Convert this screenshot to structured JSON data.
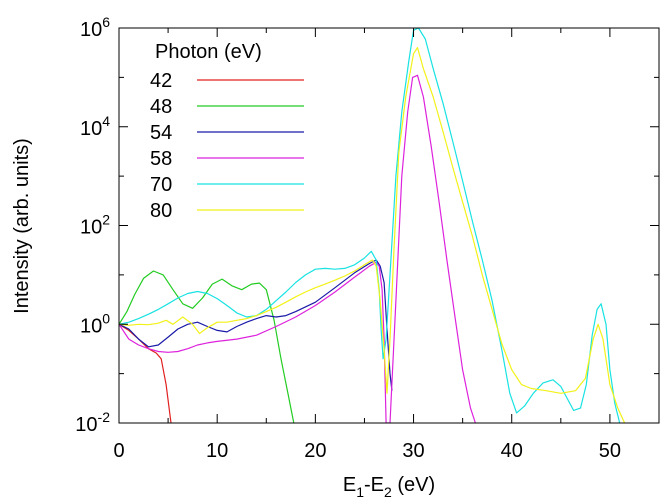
{
  "chart_data": {
    "type": "line",
    "xlabel": "E1-E2 (eV)",
    "xlabel_parts": {
      "base1": "E",
      "sub1": "1",
      "mid": "-E",
      "sub2": "2",
      "tail": " (eV)"
    },
    "ylabel": "Intensity (arb. units)",
    "xlim": [
      0,
      55
    ],
    "ylim": [
      0.01,
      1000000
    ],
    "yscale": "log",
    "x_ticks": [
      0,
      10,
      20,
      30,
      40,
      50
    ],
    "x_tick_labels": [
      "0",
      "10",
      "20",
      "30",
      "40",
      "50"
    ],
    "y_ticks": [
      {
        "value": 0.01,
        "base": "10",
        "exp": "-2"
      },
      {
        "value": 1,
        "base": "10",
        "exp": "0"
      },
      {
        "value": 100,
        "base": "10",
        "exp": "2"
      },
      {
        "value": 10000,
        "base": "10",
        "exp": "4"
      },
      {
        "value": 1000000,
        "base": "10",
        "exp": "6"
      }
    ],
    "grid": false,
    "legend": {
      "title": "Photon (eV)",
      "placement": "top-left"
    },
    "series": [
      {
        "name": "42",
        "color": "#e0201f",
        "points": [
          [
            0,
            1.0
          ],
          [
            1,
            0.75
          ],
          [
            2,
            0.5
          ],
          [
            3,
            0.32
          ],
          [
            3.8,
            0.26
          ],
          [
            4.3,
            0.2
          ],
          [
            4.8,
            0.06
          ],
          [
            5.3,
            0.01
          ]
        ]
      },
      {
        "name": "48",
        "color": "#22cc22",
        "points": [
          [
            0,
            1.0
          ],
          [
            0.8,
            1.8
          ],
          [
            1.6,
            4.0
          ],
          [
            2.5,
            8.5
          ],
          [
            3.5,
            12.0
          ],
          [
            4.5,
            10.0
          ],
          [
            5.5,
            5.0
          ],
          [
            6.5,
            2.6
          ],
          [
            7.5,
            2.1
          ],
          [
            8.5,
            3.4
          ],
          [
            9.5,
            6.5
          ],
          [
            10.5,
            8.2
          ],
          [
            11.5,
            6.0
          ],
          [
            12.5,
            5.0
          ],
          [
            13.5,
            6.5
          ],
          [
            14.3,
            6.8
          ],
          [
            15,
            5.0
          ],
          [
            15.8,
            1.2
          ],
          [
            16.5,
            0.2
          ],
          [
            17.2,
            0.04
          ],
          [
            17.8,
            0.01
          ]
        ]
      },
      {
        "name": "54",
        "color": "#1a1aa8",
        "points": [
          [
            0,
            1.0
          ],
          [
            1,
            0.8
          ],
          [
            2,
            0.5
          ],
          [
            3,
            0.35
          ],
          [
            4,
            0.38
          ],
          [
            5,
            0.55
          ],
          [
            6,
            0.8
          ],
          [
            7,
            1.0
          ],
          [
            8,
            1.1
          ],
          [
            9,
            0.9
          ],
          [
            10,
            0.75
          ],
          [
            11,
            0.7
          ],
          [
            12,
            0.9
          ],
          [
            13,
            1.1
          ],
          [
            14,
            1.3
          ],
          [
            15,
            1.5
          ],
          [
            16,
            1.4
          ],
          [
            17,
            1.5
          ],
          [
            18,
            1.8
          ],
          [
            20,
            2.8
          ],
          [
            22,
            5.5
          ],
          [
            24,
            11.0
          ],
          [
            25.5,
            17.0
          ],
          [
            26.2,
            20.0
          ],
          [
            26.6,
            15.0
          ],
          [
            27.0,
            7.0
          ],
          [
            27.3,
            0.8
          ],
          [
            27.6,
            0.1
          ],
          [
            27.8,
            0.045
          ]
        ]
      },
      {
        "name": "58",
        "color": "#dd22dd",
        "points": [
          [
            0,
            1.0
          ],
          [
            1,
            0.5
          ],
          [
            2,
            0.38
          ],
          [
            3,
            0.32
          ],
          [
            4,
            0.28
          ],
          [
            5,
            0.27
          ],
          [
            6,
            0.28
          ],
          [
            7,
            0.32
          ],
          [
            8,
            0.38
          ],
          [
            9,
            0.42
          ],
          [
            10,
            0.45
          ],
          [
            12,
            0.5
          ],
          [
            14,
            0.6
          ],
          [
            16,
            0.9
          ],
          [
            18,
            1.4
          ],
          [
            20,
            2.4
          ],
          [
            22,
            4.5
          ],
          [
            24,
            9.0
          ],
          [
            25.5,
            15.0
          ],
          [
            26.2,
            18.0
          ],
          [
            26.5,
            15.0
          ],
          [
            26.8,
            5.0
          ],
          [
            27.0,
            0.5
          ],
          [
            27.2,
            0.01
          ],
          [
            27.6,
            0.01
          ],
          [
            28.2,
            3.0
          ],
          [
            28.8,
            1000
          ],
          [
            29.4,
            20000
          ],
          [
            29.9,
            100000
          ],
          [
            30.4,
            110000
          ],
          [
            31.0,
            40000
          ],
          [
            31.8,
            4000
          ],
          [
            32.6,
            300
          ],
          [
            33.4,
            20
          ],
          [
            34.2,
            1.5
          ],
          [
            35,
            0.12
          ],
          [
            35.8,
            0.02
          ],
          [
            36.3,
            0.01
          ]
        ]
      },
      {
        "name": "70",
        "color": "#18e2e2",
        "points": [
          [
            0,
            1.0
          ],
          [
            1,
            1.1
          ],
          [
            2,
            1.3
          ],
          [
            3,
            1.6
          ],
          [
            4,
            2.0
          ],
          [
            5,
            2.6
          ],
          [
            6,
            3.4
          ],
          [
            7,
            4.2
          ],
          [
            8,
            4.6
          ],
          [
            9,
            4.2
          ],
          [
            10,
            3.3
          ],
          [
            11,
            2.4
          ],
          [
            12,
            1.7
          ],
          [
            13,
            1.4
          ],
          [
            14,
            1.5
          ],
          [
            15,
            2.0
          ],
          [
            16,
            3.0
          ],
          [
            17,
            4.5
          ],
          [
            18,
            7.0
          ],
          [
            19,
            10.0
          ],
          [
            20,
            13.0
          ],
          [
            21,
            13.5
          ],
          [
            22,
            13.0
          ],
          [
            23,
            13.5
          ],
          [
            24,
            16.0
          ],
          [
            25,
            22.0
          ],
          [
            25.7,
            30.0
          ],
          [
            26.2,
            20.0
          ],
          [
            26.5,
            5.0
          ],
          [
            26.7,
            0.8
          ],
          [
            26.9,
            0.2
          ],
          [
            27.2,
            0.5
          ],
          [
            27.6,
            10.0
          ],
          [
            28.2,
            1000
          ],
          [
            28.8,
            20000
          ],
          [
            29.5,
            200000
          ],
          [
            30.0,
            900000
          ],
          [
            30.5,
            1000000
          ],
          [
            31.2,
            600000
          ],
          [
            32,
            150000
          ],
          [
            33,
            30000
          ],
          [
            34,
            5000
          ],
          [
            35,
            800
          ],
          [
            36,
            120
          ],
          [
            37,
            20
          ],
          [
            38,
            3.0
          ],
          [
            39,
            0.3
          ],
          [
            39.8,
            0.04
          ],
          [
            40.5,
            0.016
          ],
          [
            41.3,
            0.022
          ],
          [
            42.2,
            0.04
          ],
          [
            43.2,
            0.065
          ],
          [
            44.2,
            0.075
          ],
          [
            45.0,
            0.055
          ],
          [
            45.7,
            0.03
          ],
          [
            46.3,
            0.018
          ],
          [
            47,
            0.02
          ],
          [
            47.6,
            0.06
          ],
          [
            48.2,
            0.6
          ],
          [
            48.7,
            2.0
          ],
          [
            49.1,
            2.6
          ],
          [
            49.6,
            1.0
          ],
          [
            50,
            0.12
          ],
          [
            50.5,
            0.025
          ],
          [
            51,
            0.01
          ]
        ]
      },
      {
        "name": "80",
        "color": "#f2f219",
        "points": [
          [
            0,
            1.0
          ],
          [
            1,
            0.95
          ],
          [
            2,
            1.0
          ],
          [
            3,
            0.98
          ],
          [
            4,
            1.05
          ],
          [
            4.8,
            1.2
          ],
          [
            5.5,
            1.0
          ],
          [
            6.5,
            1.4
          ],
          [
            7.5,
            1.0
          ],
          [
            8.2,
            0.65
          ],
          [
            9,
            0.85
          ],
          [
            10,
            1.1
          ],
          [
            11,
            1.1
          ],
          [
            12,
            1.2
          ],
          [
            13,
            1.3
          ],
          [
            14,
            1.5
          ],
          [
            15,
            1.8
          ],
          [
            16,
            2.2
          ],
          [
            17,
            2.8
          ],
          [
            18,
            3.6
          ],
          [
            19,
            4.5
          ],
          [
            20,
            5.5
          ],
          [
            21,
            6.5
          ],
          [
            22,
            7.8
          ],
          [
            23,
            9.5
          ],
          [
            24,
            12.0
          ],
          [
            25,
            16.0
          ],
          [
            25.8,
            20.0
          ],
          [
            26.2,
            15.0
          ],
          [
            26.6,
            3.0
          ],
          [
            27.0,
            0.3
          ],
          [
            27.3,
            0.04
          ],
          [
            27.6,
            0.5
          ],
          [
            28.0,
            30
          ],
          [
            28.5,
            3000
          ],
          [
            29.2,
            40000
          ],
          [
            30.0,
            300000
          ],
          [
            30.4,
            400000
          ],
          [
            31.0,
            150000
          ],
          [
            32,
            40000
          ],
          [
            33,
            8000
          ],
          [
            34,
            1500
          ],
          [
            35,
            300
          ],
          [
            36,
            60
          ],
          [
            37,
            10
          ],
          [
            38,
            2.0
          ],
          [
            39,
            0.4
          ],
          [
            40,
            0.12
          ],
          [
            41,
            0.06
          ],
          [
            42,
            0.05
          ],
          [
            43.5,
            0.045
          ],
          [
            45,
            0.04
          ],
          [
            46.5,
            0.045
          ],
          [
            47.5,
            0.08
          ],
          [
            48.3,
            0.5
          ],
          [
            48.8,
            1.0
          ],
          [
            49.3,
            0.5
          ],
          [
            50.0,
            0.06
          ],
          [
            50.8,
            0.02
          ],
          [
            51.5,
            0.01
          ]
        ]
      }
    ]
  }
}
